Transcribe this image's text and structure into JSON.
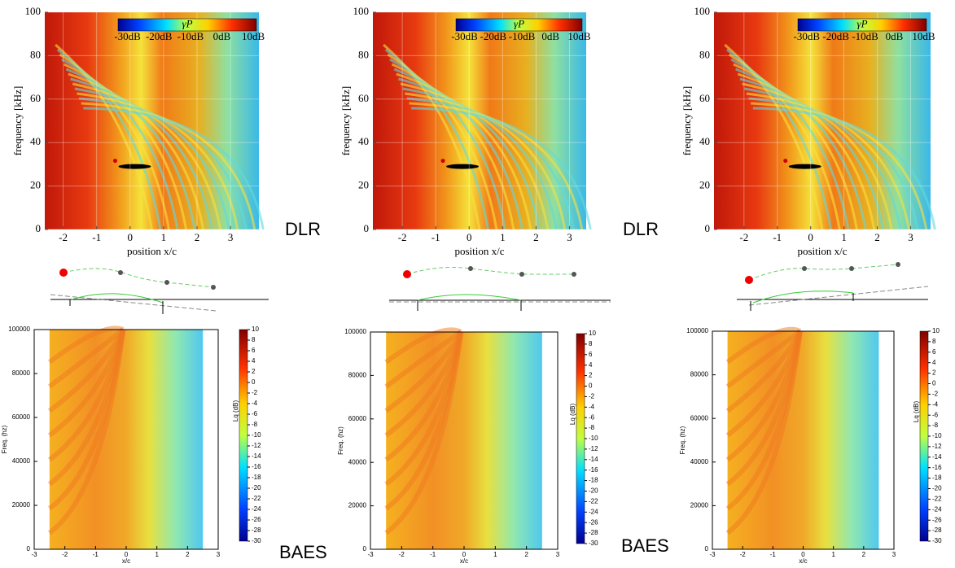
{
  "chart_data": [
    {
      "type": "heatmap",
      "xlabel": "position x/c",
      "ylabel": "frequency [kHz]",
      "xlim": [
        -2.55,
        3.85
      ],
      "ylim": [
        0,
        100
      ],
      "xticks": [
        -2,
        -1,
        0,
        1,
        2,
        3
      ],
      "yticks": [
        0,
        20,
        40,
        60,
        80,
        100
      ],
      "colorbar": {
        "label": "γP",
        "lim": [
          -33,
          11
        ],
        "ticks": [
          {
            "value": -30,
            "label": "-30dB"
          },
          {
            "value": -20,
            "label": "-20dB"
          },
          {
            "value": -10,
            "label": "-10dB"
          },
          {
            "value": 0,
            "label": "0dB"
          },
          {
            "value": 10,
            "label": "10dB"
          }
        ]
      },
      "annotation": "DLR"
    },
    {
      "type": "heatmap",
      "xlabel": "position x/c",
      "ylabel": "frequency [kHz]",
      "xlim": [
        -2.88,
        3.5
      ],
      "ylim": [
        0,
        100
      ],
      "xticks": [
        -2,
        -1,
        0,
        1,
        2,
        3
      ],
      "yticks": [
        0,
        20,
        40,
        60,
        80,
        100
      ],
      "colorbar": {
        "label": "γP",
        "lim": [
          -33,
          11
        ],
        "ticks": [
          {
            "value": -30,
            "label": "-30dB"
          },
          {
            "value": -20,
            "label": "-20dB"
          },
          {
            "value": -10,
            "label": "-10dB"
          },
          {
            "value": 0,
            "label": "0dB"
          },
          {
            "value": 10,
            "label": "10dB"
          }
        ]
      },
      "annotation": "DLR"
    },
    {
      "type": "heatmap",
      "xlabel": "position x/c",
      "ylabel": "frequency [kHz]",
      "xlim": [
        -2.9,
        3.6
      ],
      "ylim": [
        0,
        100
      ],
      "xticks": [
        -2,
        -1,
        0,
        1,
        2,
        3
      ],
      "yticks": [
        0,
        20,
        40,
        60,
        80,
        100
      ],
      "colorbar": {
        "label": "γP",
        "lim": [
          -33,
          11
        ],
        "ticks": [
          {
            "value": -30,
            "label": "-30dB"
          },
          {
            "value": -20,
            "label": "-20dB"
          },
          {
            "value": -10,
            "label": "-10dB"
          },
          {
            "value": 0,
            "label": "0dB"
          },
          {
            "value": 10,
            "label": "10dB"
          }
        ]
      }
    },
    {
      "type": "heatmap",
      "xlabel": "x/c",
      "ylabel": "Freq. (hz)",
      "xlim": [
        -3,
        3
      ],
      "ylim": [
        0,
        100000
      ],
      "xticks": [
        -3,
        -2,
        -1,
        0,
        1,
        2,
        3
      ],
      "yticks": [
        0,
        20000,
        40000,
        60000,
        80000,
        100000
      ],
      "data_xlim": [
        -2.5,
        2.5
      ],
      "colorbar": {
        "label": "Lq (dB)",
        "lim": [
          -30,
          10
        ],
        "ticks": [
          10,
          8,
          6,
          4,
          2,
          0,
          -2,
          -4,
          -6,
          -8,
          -10,
          -12,
          -14,
          -16,
          -18,
          -20,
          -22,
          -24,
          -26,
          -28,
          -30
        ]
      },
      "annotation": "BAES"
    },
    {
      "type": "heatmap",
      "xlabel": "x/c",
      "ylabel": "Freq. (hz)",
      "xlim": [
        -3,
        3
      ],
      "ylim": [
        0,
        100000
      ],
      "xticks": [
        -3,
        -2,
        -1,
        0,
        1,
        2,
        3
      ],
      "yticks": [
        0,
        20000,
        40000,
        60000,
        80000,
        100000
      ],
      "data_xlim": [
        -2.5,
        2.5
      ],
      "colorbar": {
        "label": "Lq (dB)",
        "lim": [
          -30,
          10
        ],
        "ticks": [
          10,
          8,
          6,
          4,
          2,
          0,
          -2,
          -4,
          -6,
          -8,
          -10,
          -12,
          -14,
          -16,
          -18,
          -20,
          -22,
          -24,
          -26,
          -28,
          -30
        ]
      },
      "annotation": "BAES"
    },
    {
      "type": "heatmap",
      "xlabel": "x/c",
      "ylabel": "Freq. (hz)",
      "xlim": [
        -3,
        3
      ],
      "ylim": [
        0,
        100000
      ],
      "xticks": [
        -3,
        -2,
        -1,
        0,
        1,
        2,
        3
      ],
      "yticks": [
        0,
        20000,
        40000,
        60000,
        80000,
        100000
      ],
      "data_xlim": [
        -2.5,
        2.5
      ],
      "colorbar": {
        "label": "Lq (dB)",
        "lim": [
          -30,
          10
        ],
        "ticks": [
          10,
          8,
          6,
          4,
          2,
          0,
          -2,
          -4,
          -6,
          -8,
          -10,
          -12,
          -14,
          -16,
          -18,
          -20,
          -22,
          -24,
          -26,
          -28,
          -30
        ]
      }
    }
  ]
}
